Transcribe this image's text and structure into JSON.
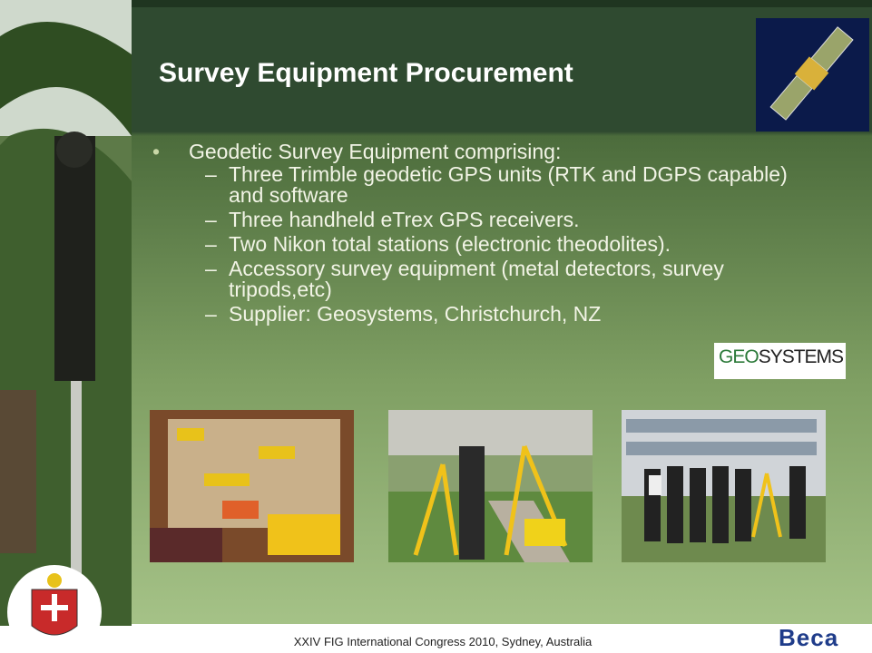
{
  "slide": {
    "title": "Survey Equipment Procurement",
    "bullet": "Geodetic Survey Equipment comprising:",
    "sub_items": [
      "Three Trimble geodetic  GPS units (RTK and DGPS capable) and software",
      "Three handheld eTrex GPS receivers.",
      "Two Nikon total stations (electronic theodolites).",
      "Accessory survey equipment (metal detectors, survey tripods,etc)",
      "Supplier: Geosystems, Christchurch, NZ"
    ],
    "supplier_logo": {
      "part1": "GEO",
      "part2": "SYSTEMS"
    },
    "footer": "XXIV FIG International Congress 2010, Sydney, Australia",
    "company_logo": "Beca"
  }
}
